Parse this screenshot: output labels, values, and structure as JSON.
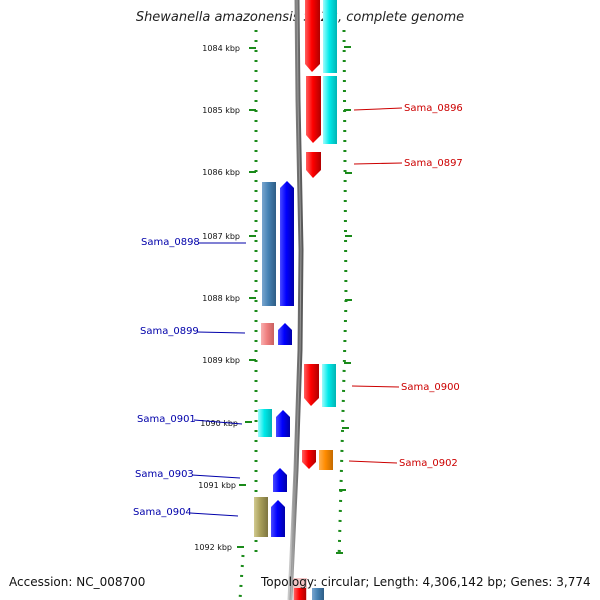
{
  "title": "Shewanella amazonensis SB2B, complete genome",
  "accession_text": "Accession: NC_008700",
  "summary_text": "Topology: circular; Length: 4,306,142 bp; Genes: 3,774",
  "scale_ticks": [
    "1084 kbp",
    "1085 kbp",
    "1086 kbp",
    "1087 kbp",
    "1088 kbp",
    "1089 kbp",
    "1090 kbp",
    "1091 kbp",
    "1092 kbp"
  ],
  "colors": {
    "forward_gene": "#ff0000",
    "reverse_gene": "#0000ff",
    "cyan_track": "#00e5e5",
    "steelblue_track": "#4682b4",
    "pink_track": "#f08080",
    "orange_track": "#ff8c00",
    "olive_track": "#a89f5a",
    "backbone": "#888888",
    "dots": "#1a8a1a",
    "label_forward": "#cc0000",
    "label_reverse": "#0000aa"
  },
  "genes_forward": [
    {
      "label": "Sama_0896"
    },
    {
      "label": "Sama_0897"
    },
    {
      "label": "Sama_0900"
    },
    {
      "label": "Sama_0902"
    }
  ],
  "genes_reverse": [
    {
      "label": "Sama_0898"
    },
    {
      "label": "Sama_0899"
    },
    {
      "label": "Sama_0901"
    },
    {
      "label": "Sama_0903"
    },
    {
      "label": "Sama_0904"
    }
  ]
}
